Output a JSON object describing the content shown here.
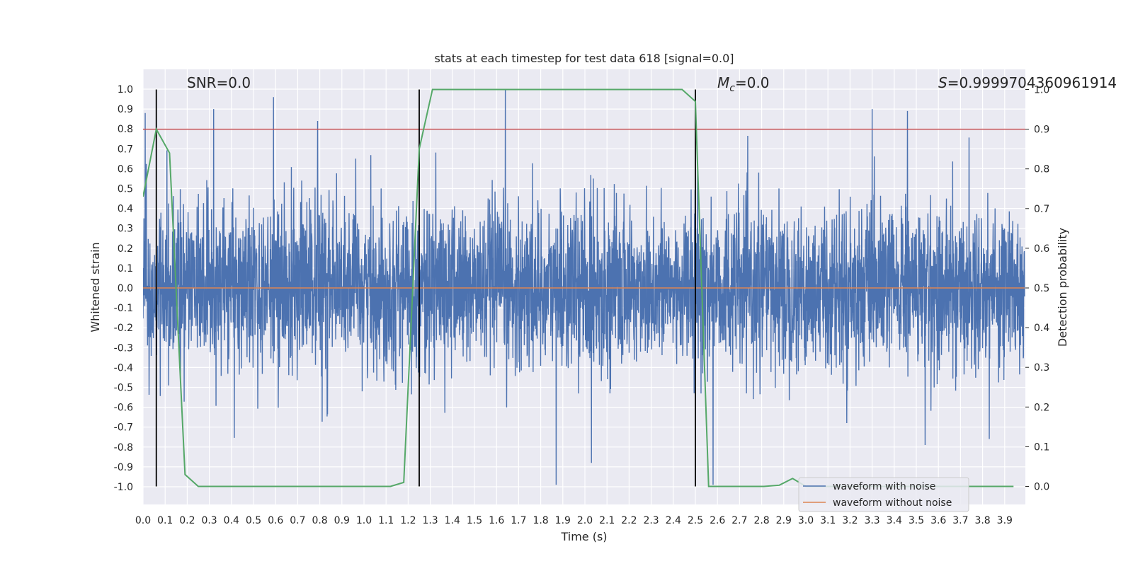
{
  "chart_data": {
    "type": "line",
    "title": "stats at each timestep for test data 618 [signal=0.0]",
    "xlabel": "Time (s)",
    "ylabel": "Whitened strain",
    "y2label": "Detection probability",
    "xlim": [
      0.0,
      4.0
    ],
    "ylim": [
      -1.1,
      1.1
    ],
    "y2lim": [
      -0.05,
      1.05
    ],
    "xticks": [
      "0.0",
      "0.1",
      "0.2",
      "0.3",
      "0.4",
      "0.5",
      "0.6",
      "0.7",
      "0.8",
      "0.9",
      "1.0",
      "1.1",
      "1.2",
      "1.3",
      "1.4",
      "1.5",
      "1.6",
      "1.7",
      "1.8",
      "1.9",
      "2.0",
      "2.1",
      "2.2",
      "2.3",
      "2.4",
      "2.5",
      "2.6",
      "2.7",
      "2.8",
      "2.9",
      "3.0",
      "3.1",
      "3.2",
      "3.3",
      "3.4",
      "3.5",
      "3.6",
      "3.7",
      "3.8",
      "3.9"
    ],
    "yticks": [
      "1.0",
      "0.9",
      "0.8",
      "0.7",
      "0.6",
      "0.5",
      "0.4",
      "0.3",
      "0.2",
      "0.1",
      "0.0",
      "-0.1",
      "-0.2",
      "-0.3",
      "-0.4",
      "-0.5",
      "-0.6",
      "-0.7",
      "-0.8",
      "-0.9",
      "-1.0"
    ],
    "y2ticks": [
      "1.0",
      "0.9",
      "0.8",
      "0.7",
      "0.6",
      "0.5",
      "0.4",
      "0.3",
      "0.2",
      "0.1",
      "0.0"
    ],
    "annotations": {
      "snr": "SNR=0.0",
      "mc": "M",
      "mc_sub": "c",
      "mc_val": "=0.0",
      "s_sym": "S",
      "s_val": "=0.9999704360961914"
    },
    "series": [
      {
        "name": "waveform with noise",
        "axis": "left",
        "color": "#4c72b0",
        "description": "dense whitened noise trace, amplitude mostly within +/-0.5 with spikes to about +/-1.0",
        "noise_amplitude": 0.5,
        "samples": 4096,
        "spikes": [
          [
            0.01,
            0.88
          ],
          [
            0.32,
            0.9
          ],
          [
            0.59,
            0.96
          ],
          [
            0.79,
            0.84
          ],
          [
            1.64,
            1.0
          ],
          [
            1.87,
            -0.99
          ],
          [
            2.03,
            -0.88
          ],
          [
            2.58,
            -0.99
          ],
          [
            3.3,
            0.9
          ],
          [
            3.46,
            0.89
          ],
          [
            3.54,
            -0.79
          ],
          [
            3.83,
            -0.76
          ]
        ]
      },
      {
        "name": "waveform without noise",
        "axis": "left",
        "color": "#dd8452",
        "x": [
          0.0,
          3.99
        ],
        "y": [
          0.0,
          0.0
        ]
      },
      {
        "name": "detection probability",
        "axis": "right",
        "color": "#55a868",
        "x": [
          0.0,
          0.06,
          0.12,
          0.19,
          0.25,
          0.31,
          1.12,
          1.18,
          1.25,
          1.31,
          2.44,
          2.5,
          2.56,
          2.62,
          2.81,
          2.88,
          2.94,
          3.0,
          3.06,
          3.94
        ],
        "y": [
          0.73,
          0.9,
          0.84,
          0.03,
          0.0,
          0.0,
          0.0,
          0.01,
          0.85,
          1.0,
          1.0,
          0.97,
          0.0,
          0.0,
          0.0,
          0.003,
          0.02,
          0.0,
          0.0,
          0.0
        ]
      }
    ],
    "threshold": {
      "axis": "right",
      "value": 0.9,
      "color": "#c44e52"
    },
    "vlines": [
      0.06,
      1.25,
      2.5
    ],
    "vline_range_right_axis": [
      0.0,
      1.0
    ],
    "legend_position": "lower-right"
  }
}
